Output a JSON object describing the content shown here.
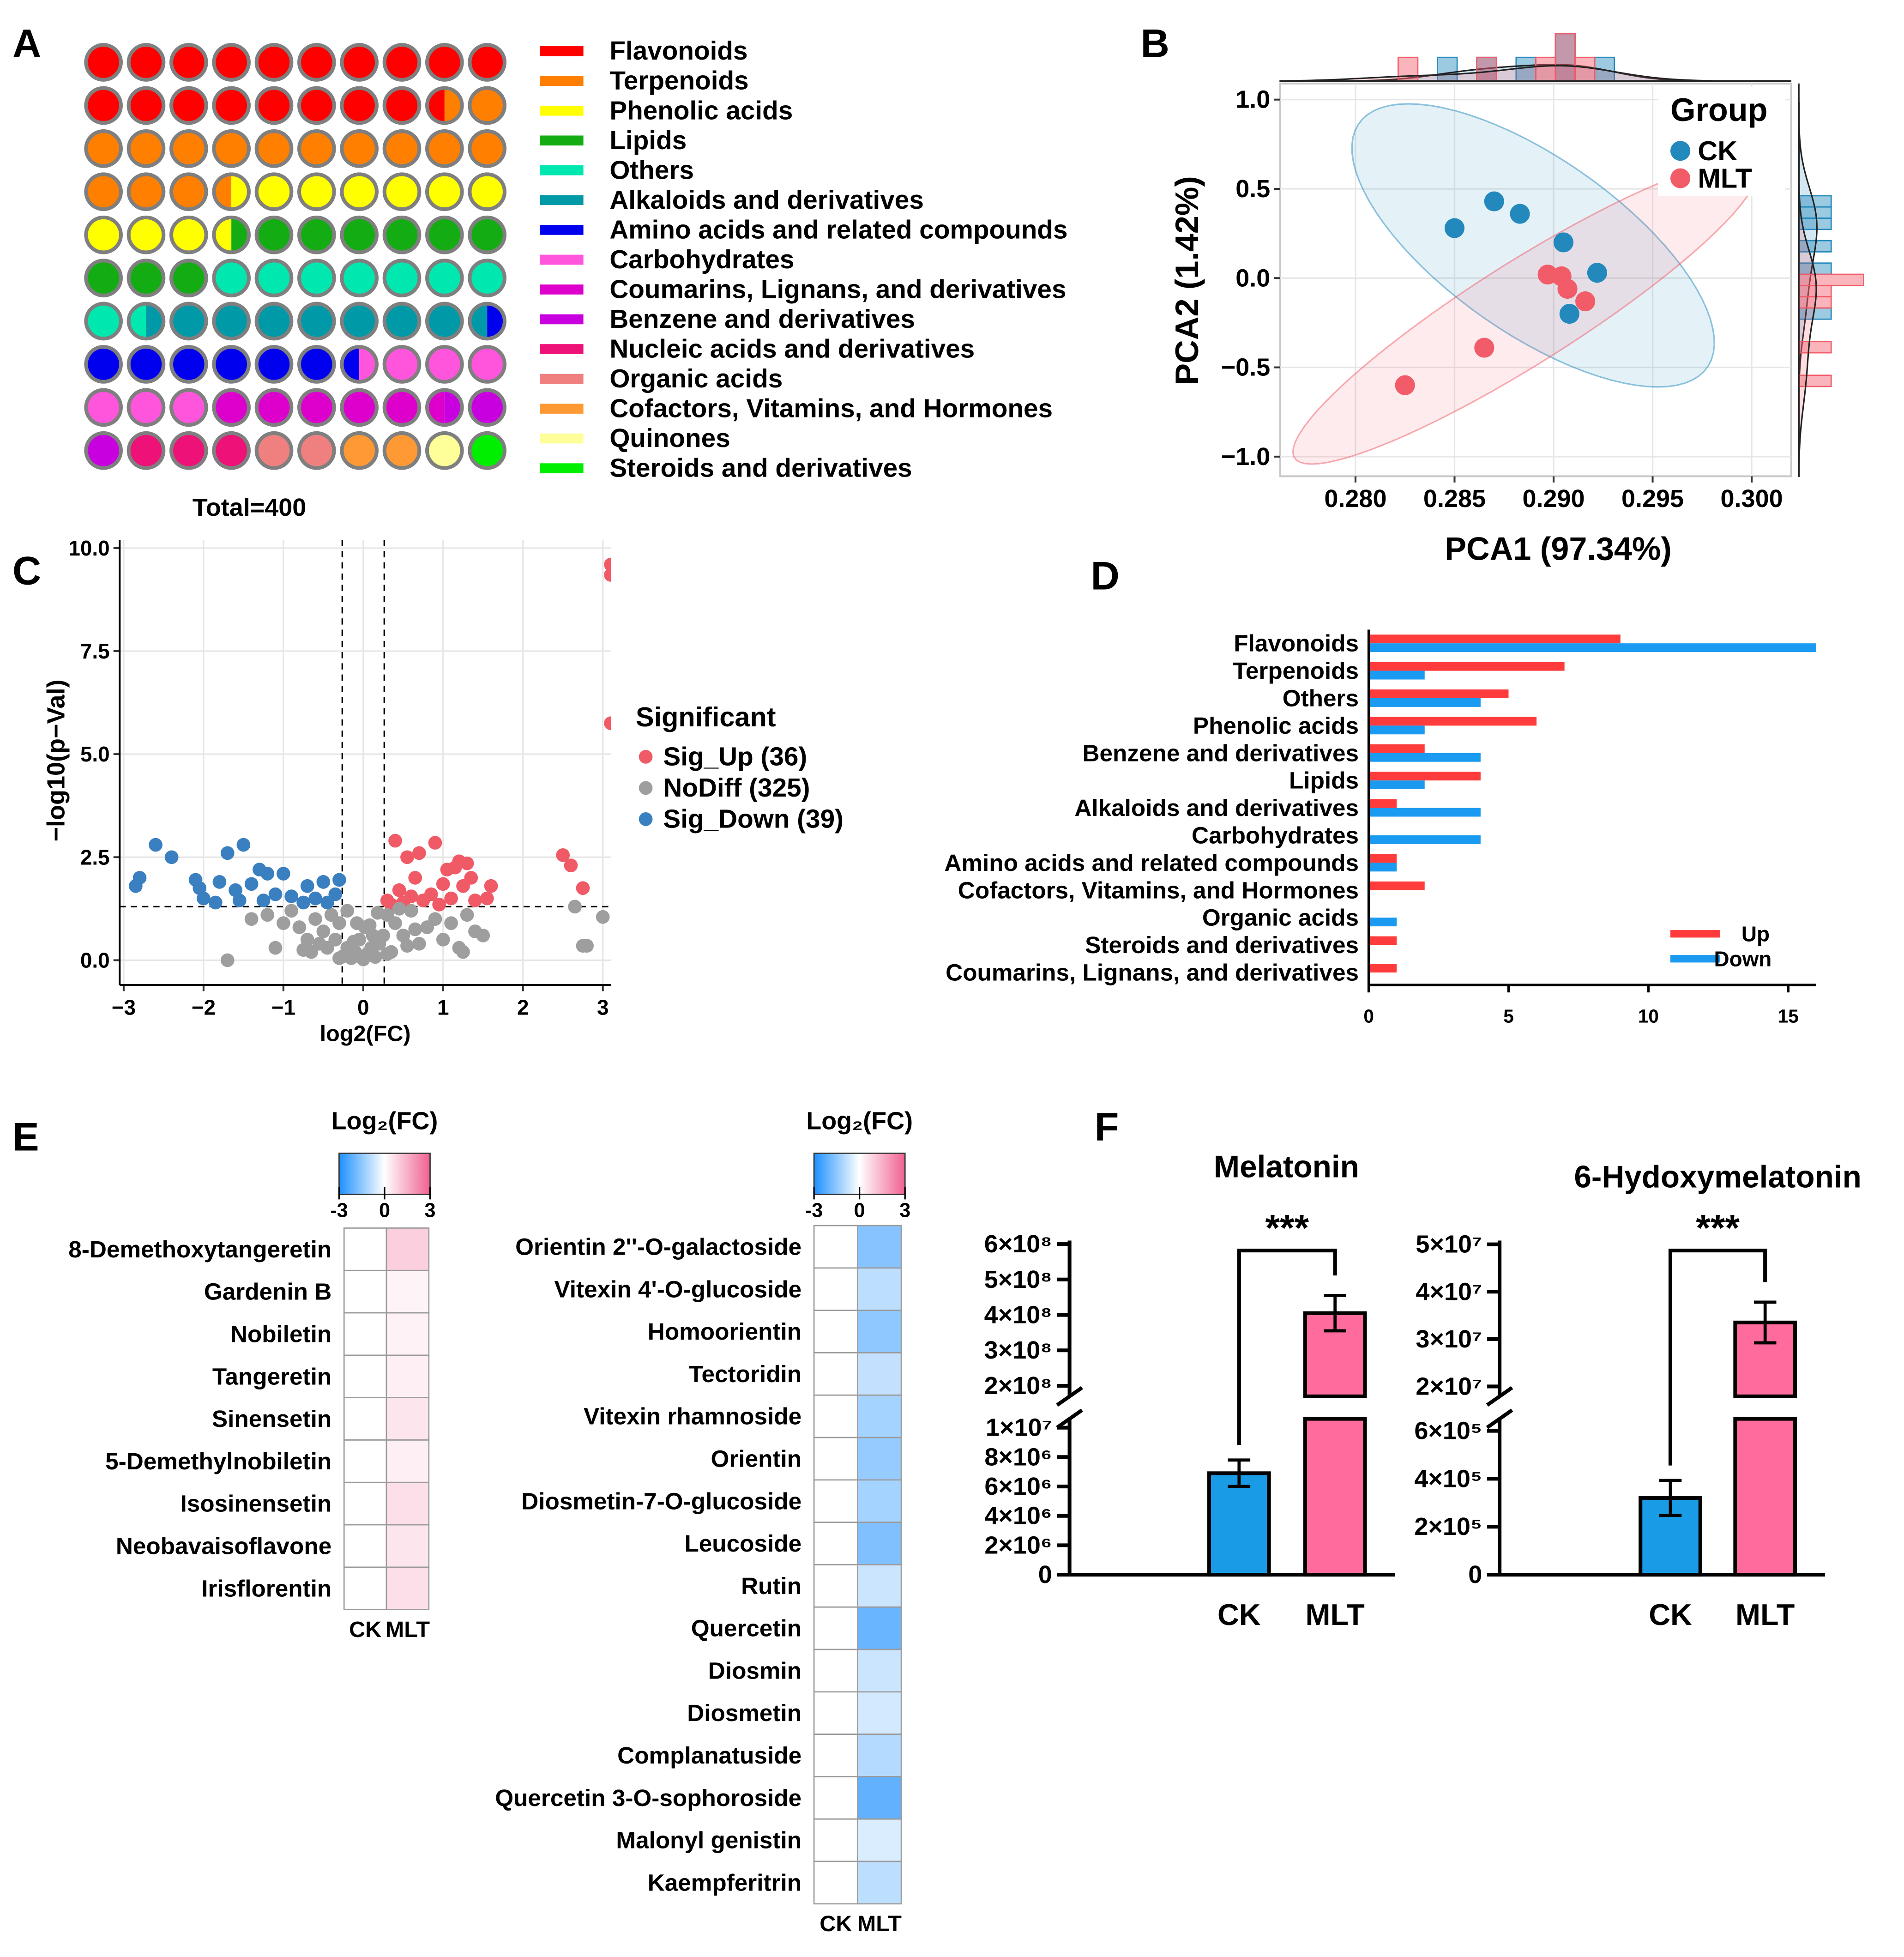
{
  "chart_data": [
    {
      "panel": "A",
      "type": "waffle",
      "categories": [
        "Flavonoids",
        "Terpenoids",
        "Phenolic acids",
        "Lipids",
        "Others",
        "Alkaloids and derivatives",
        "Amino acids and related compounds",
        "Carbohydrates",
        "Coumarins, Lignans, and derivatives",
        "Benzene and derivatives",
        "Nucleic acids and derivatives",
        "Organic acids",
        "Cofactors, Vitamins, and Hormones",
        "Quinones",
        "Steroids and derivatives"
      ],
      "values": [
        74,
        60,
        40,
        38,
        34,
        32,
        28,
        26,
        22,
        10,
        12,
        8,
        8,
        4,
        4
      ],
      "colors": [
        "#ff0000",
        "#ff7f00",
        "#ffff00",
        "#13ad13",
        "#00e8b0",
        "#0099a8",
        "#0000ee",
        "#ff55dd",
        "#dd00cc",
        "#c800e0",
        "#ee1177",
        "#f08080",
        "#ff9933",
        "#ffff99",
        "#00ee00"
      ],
      "total_label": "Total=400"
    },
    {
      "panel": "B",
      "type": "scatter",
      "xlabel": "PCA1 (97.34%)",
      "ylabel": "PCA2 (1.42%)",
      "legend_title": "Group",
      "series": [
        {
          "name": "CK",
          "color": "#2389bd",
          "x": [
            0.285,
            0.287,
            0.2883,
            0.2905,
            0.2922,
            0.2908
          ],
          "values": [
            0.28,
            0.43,
            0.36,
            0.2,
            0.03,
            -0.2
          ]
        },
        {
          "name": "MLT",
          "color": "#f25c68",
          "x": [
            0.2825,
            0.2865,
            0.2897,
            0.2904,
            0.2907,
            0.2916
          ],
          "values": [
            -0.6,
            -0.39,
            0.02,
            0.01,
            -0.06,
            -0.13
          ]
        }
      ],
      "xlim": [
        0.2762,
        0.302
      ],
      "ylim": [
        -1.11,
        1.09
      ],
      "xticks": [
        {
          "value": 0.28,
          "label": "0.280"
        },
        {
          "value": 0.285,
          "label": "0.285"
        },
        {
          "value": 0.29,
          "label": "0.290"
        },
        {
          "value": 0.295,
          "label": "0.295"
        },
        {
          "value": 0.3,
          "label": "0.300"
        }
      ],
      "yticks": [
        {
          "value": -1,
          "label": "−1.0"
        },
        {
          "value": -0.5,
          "label": "−0.5"
        },
        {
          "value": 0,
          "label": "0.0"
        },
        0.5,
        {
          "value": 1,
          "label": "1.0"
        }
      ],
      "grid": true,
      "legend": "upper right",
      "ellipse": true,
      "marginal": true
    },
    {
      "panel": "C",
      "type": "scatter",
      "xlabel": "log2(FC)",
      "ylabel": "−log10(p−Val)",
      "legend_title": "Significant",
      "series": [
        {
          "name": "Sig_Up (36)",
          "color": "#ef5a66",
          "x": [
            3.1,
            3.1,
            3.1,
            2.5,
            2.6,
            2.75,
            0.4,
            0.55,
            0.7,
            0.9,
            1.05,
            1.15,
            1.2,
            1.3,
            1.35,
            1.25,
            1.0,
            0.85,
            0.6,
            0.45,
            0.3,
            0.35,
            0.5,
            0.75,
            1.1,
            1.4,
            1.6,
            1.55,
            0.65,
            0.95
          ],
          "values": [
            9.6,
            9.35,
            5.75,
            2.55,
            2.3,
            1.75,
            2.9,
            2.5,
            2.6,
            2.85,
            2.2,
            2.25,
            2.4,
            2.35,
            2.0,
            1.8,
            1.85,
            1.6,
            1.55,
            1.7,
            1.45,
            1.35,
            1.4,
            1.45,
            1.5,
            1.45,
            1.8,
            1.5,
            2.0,
            1.35
          ]
        },
        {
          "name": "NoDiff (325)",
          "color": "#9e9e9e",
          "x": [
            -0.25,
            -0.2,
            -0.15,
            -0.1,
            -0.05,
            0,
            0.05,
            0.1,
            0.15,
            0.2,
            0.25,
            -0.3,
            -0.4,
            -0.5,
            -0.6,
            -0.7,
            -0.8,
            -0.9,
            -1.0,
            -1.2,
            -1.4,
            -0.45,
            -0.35,
            -0.55,
            -0.65,
            -0.75,
            0.3,
            0.4,
            0.5,
            0.6,
            0.7,
            0.8,
            0.9,
            1.0,
            1.1,
            1.2,
            1.3,
            1.4,
            0.35,
            0.45,
            0.55,
            0.65,
            -0.05,
            0.02,
            -0.12,
            0.12,
            -1.7,
            2.65,
            2.8,
            3.0,
            2.75,
            1.25,
            -0.2,
            0.18,
            -0.08,
            0.08,
            -0.3,
            0.3,
            1.5,
            -1.1
          ],
          "values": [
            0.1,
            0.3,
            0.05,
            0.2,
            0.1,
            0.02,
            0.15,
            0.3,
            0.08,
            0.4,
            0.6,
            0.9,
            1.1,
            0.7,
            1.0,
            0.5,
            0.8,
            1.2,
            0.9,
            1.1,
            1.0,
            0.3,
            0.5,
            0.4,
            0.2,
            0.25,
            1.1,
            0.9,
            0.6,
            1.2,
            0.4,
            0.8,
            1.0,
            0.5,
            0.9,
            0.3,
            1.1,
            0.7,
            0.2,
            1.25,
            0.35,
            0.75,
            0.5,
            0.8,
            0.45,
            0.6,
            0.0,
            1.3,
            0.35,
            1.05,
            0.35,
            0.2,
            1.2,
            1.15,
            0.9,
            0.85,
            0.05,
            0.15,
            0.6,
            0.3
          ]
        },
        {
          "name": "Sig_Down (39)",
          "color": "#3a7fc0",
          "x": [
            -2.6,
            -2.4,
            -2.8,
            -2.85,
            -1.5,
            -1.7,
            -1.3,
            -1.2,
            -1.0,
            -2.1,
            -2.05,
            -1.8,
            -1.6,
            -1.4,
            -1.1,
            -0.9,
            -0.7,
            -0.5,
            -0.35,
            -0.45,
            -0.75,
            -1.25,
            -1.55,
            -2.0,
            -0.3,
            -1.85,
            -0.6
          ],
          "values": [
            2.8,
            2.5,
            2.0,
            1.8,
            2.8,
            2.6,
            2.2,
            2.1,
            2.1,
            1.95,
            1.75,
            1.9,
            1.7,
            1.85,
            1.6,
            1.55,
            1.8,
            1.9,
            1.6,
            1.4,
            1.4,
            1.45,
            1.45,
            1.5,
            1.95,
            1.4,
            1.5
          ]
        }
      ],
      "xlim": [
        -3.05,
        3.1
      ],
      "ylim": [
        -0.6,
        10.2
      ],
      "xticks": [
        {
          "value": -3,
          "label": "−3"
        },
        {
          "value": -2,
          "label": "−2"
        },
        {
          "value": -1,
          "label": "−1"
        },
        0,
        1,
        2,
        3
      ],
      "yticks": [
        {
          "value": 0,
          "label": "0.0"
        },
        2.5,
        {
          "value": 5,
          "label": "5.0"
        },
        7.5,
        {
          "value": 10,
          "label": "10.0"
        }
      ],
      "thresholds": {
        "x": [
          -0.263,
          0.263
        ],
        "y": [
          1.3
        ]
      },
      "grid": true,
      "legend": "right"
    },
    {
      "panel": "D",
      "type": "barh",
      "categories": [
        "Flavonoids",
        "Terpenoids",
        "Others",
        "Phenolic acids",
        "Benzene and derivatives",
        "Lipids",
        "Alkaloids and derivatives",
        "Carbohydrates",
        "Amino acids and related compounds",
        "Cofactors, Vitamins, and Hormones",
        "Organic acids",
        "Steroids and derivatives",
        "Coumarins, Lignans, and derivatives"
      ],
      "series": [
        {
          "name": "Up",
          "color": "#ff3b3b",
          "values": [
            9,
            7,
            5,
            6,
            2,
            4,
            1,
            0,
            1,
            2,
            0,
            1,
            1
          ]
        },
        {
          "name": "Down",
          "color": "#1a9af0",
          "values": [
            16,
            2,
            4,
            2,
            4,
            2,
            4,
            4,
            1,
            0,
            1,
            0,
            0
          ]
        }
      ],
      "xlim": [
        0,
        16
      ],
      "xticks": [
        0,
        5,
        10,
        15
      ],
      "legend": "lower right"
    },
    {
      "panel": "E",
      "type": "heatmap",
      "title": "Log₂(FC)",
      "columns": [
        "CK",
        "MLT"
      ],
      "rows": [
        "8-Demethoxytangeretin",
        "Gardenin B",
        "Nobiletin",
        "Tangeretin",
        "Sinensetin",
        "5-Demethylnobiletin",
        "Isosinensetin",
        "Neobavaisoflavone",
        "Irisflorentin"
      ],
      "values": [
        [
          0,
          0.9
        ],
        [
          0,
          0.2
        ],
        [
          0,
          0.25
        ],
        [
          0,
          0.3
        ],
        [
          0,
          0.5
        ],
        [
          0,
          0.3
        ],
        [
          0,
          0.6
        ],
        [
          0,
          0.5
        ],
        [
          0,
          0.6
        ]
      ],
      "clim": [
        -3,
        3
      ],
      "cticks": [
        -3,
        0,
        3
      ],
      "colors": [
        "#1e90ff",
        "#ffffff",
        "#f06090"
      ]
    },
    {
      "type": "heatmap",
      "title": "Log₂(FC)",
      "columns": [
        "CK",
        "MLT"
      ],
      "rows": [
        "Orientin 2''-O-galactoside",
        "Vitexin 4'-O-glucoside",
        "Homoorientin",
        "Tectoridin",
        "Vitexin rhamnoside",
        "Orientin",
        "Diosmetin-7-O-glucoside",
        "Leucoside",
        "Rutin",
        "Quercetin",
        "Diosmin",
        "Diosmetin",
        "Complanatuside",
        "Quercetin 3-O-sophoroside",
        "Malonyl genistin",
        "Kaempferitrin"
      ],
      "values": [
        [
          0,
          -1.6
        ],
        [
          0,
          -0.9
        ],
        [
          0,
          -1.5
        ],
        [
          0,
          -0.8
        ],
        [
          0,
          -1.2
        ],
        [
          0,
          -1.4
        ],
        [
          0,
          -1.2
        ],
        [
          0,
          -1.7
        ],
        [
          0,
          -0.7
        ],
        [
          0,
          -2.0
        ],
        [
          0,
          -0.7
        ],
        [
          0,
          -0.6
        ],
        [
          0,
          -1.0
        ],
        [
          0,
          -2.1
        ],
        [
          0,
          -0.5
        ],
        [
          0,
          -0.9
        ]
      ],
      "clim": [
        -3,
        3
      ],
      "cticks": [
        -3,
        0,
        3
      ],
      "colors": [
        "#1e90ff",
        "#ffffff",
        "#f06090"
      ]
    },
    {
      "panel": "F",
      "type": "broken_bar",
      "title": "Melatonin",
      "categories": [
        "CK",
        "MLT"
      ],
      "values": [
        6900000,
        405000000
      ],
      "errors": [
        900000,
        50000000
      ],
      "colors": [
        "#1a9be6",
        "#ff6b9d"
      ],
      "segments": [
        {
          "ylim": [
            0,
            10600000
          ],
          "yticks": [
            0,
            {
              "value": 2000000,
              "label": "2×10⁶"
            },
            {
              "value": 4000000,
              "label": "4×10⁶"
            },
            {
              "value": 6000000,
              "label": "6×10⁶"
            },
            {
              "value": 8000000,
              "label": "8×10⁶"
            },
            {
              "value": 10000000,
              "label": "1×10⁷"
            }
          ]
        },
        {
          "ylim": [
            170000000,
            610000000
          ],
          "yticks": [
            {
              "value": 200000000,
              "label": "2×10⁸"
            },
            {
              "value": 300000000,
              "label": "3×10⁸"
            },
            {
              "value": 400000000,
              "label": "4×10⁸"
            },
            {
              "value": 500000000,
              "label": "5×10⁸"
            },
            {
              "value": 600000000,
              "label": "6×10⁸"
            }
          ]
        }
      ],
      "significance": "***"
    },
    {
      "type": "broken_bar",
      "title": "6-Hydoxymelatonin",
      "categories": [
        "CK",
        "MLT"
      ],
      "values": [
        320000,
        33500000
      ],
      "errors": [
        73000,
        4300000
      ],
      "colors": [
        "#1a9be6",
        "#ff6b9d"
      ],
      "segments": [
        {
          "ylim": [
            0,
            650000
          ],
          "yticks": [
            0,
            {
              "value": 200000,
              "label": "2×10⁵"
            },
            {
              "value": 400000,
              "label": "4×10⁵"
            },
            {
              "value": 600000,
              "label": "6×10⁵"
            }
          ]
        },
        {
          "ylim": [
            17900000,
            50800000
          ],
          "yticks": [
            {
              "value": 20000000,
              "label": "2×10⁷"
            },
            {
              "value": 30000000,
              "label": "3×10⁷"
            },
            {
              "value": 40000000,
              "label": "4×10⁷"
            },
            {
              "value": 50000000,
              "label": "5×10⁷"
            }
          ]
        }
      ],
      "significance": "***"
    }
  ]
}
